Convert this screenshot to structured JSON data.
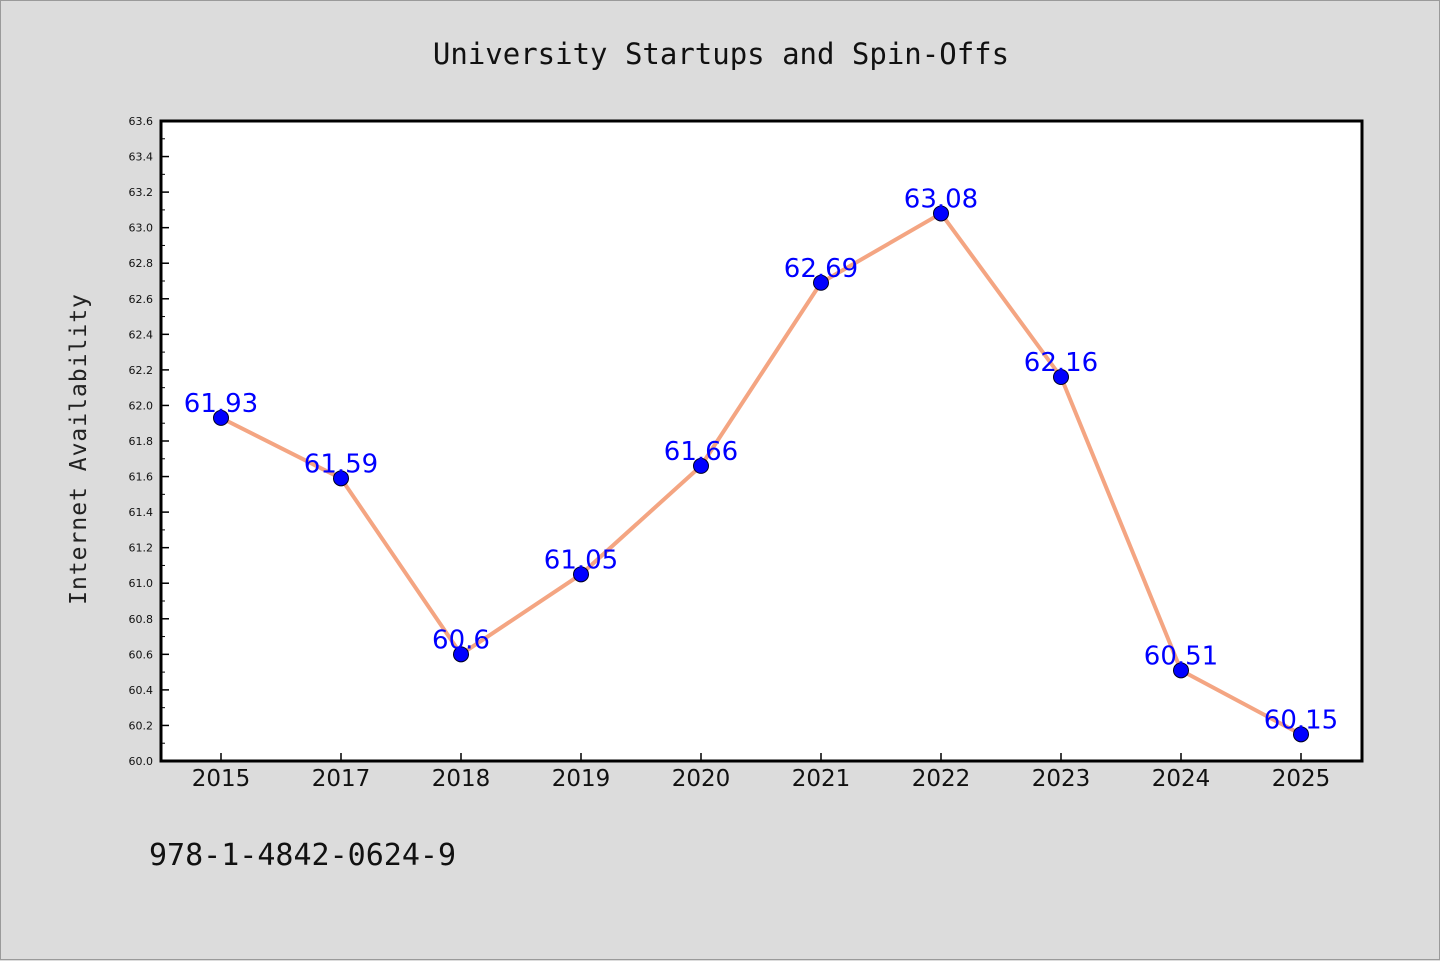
{
  "chart_data": {
    "type": "line",
    "title": "University Startups and Spin-Offs",
    "xlabel": "",
    "ylabel": "Internet Availability",
    "categories": [
      "2015",
      "2017",
      "2018",
      "2019",
      "2020",
      "2021",
      "2022",
      "2023",
      "2024",
      "2025"
    ],
    "series": [
      {
        "values": [
          61.93,
          61.59,
          60.6,
          61.05,
          61.66,
          62.69,
          63.08,
          62.16,
          60.51,
          60.15
        ],
        "labels": [
          "61.93",
          "61.59",
          "60.6",
          "61.05",
          "61.66",
          "62.69",
          "63.08",
          "62.16",
          "60.51",
          "60.15"
        ]
      }
    ],
    "ylim": [
      60.0,
      63.6
    ],
    "yticks": [
      "60.0",
      "60.2",
      "60.4",
      "60.6",
      "60.8",
      "61.0",
      "61.2",
      "61.4",
      "61.6",
      "61.8",
      "62.0",
      "62.2",
      "62.4",
      "62.6",
      "62.8",
      "63.0",
      "63.2",
      "63.4",
      "63.6"
    ],
    "grid": false,
    "legend": "none",
    "colors": {
      "line": "#f4a582",
      "marker": "#0000ff",
      "labels": "#0000ff",
      "background": "#dcdcdc",
      "plot_background": "#ffffff"
    }
  },
  "footer": {
    "isbn": "978-1-4842-0624-9"
  }
}
